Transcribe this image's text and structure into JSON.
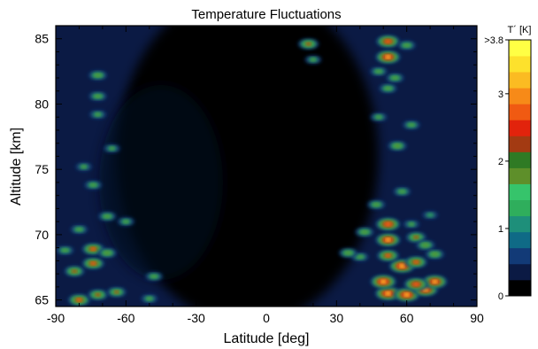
{
  "chart_data": {
    "type": "heatmap",
    "title": "Temperature Fluctuations",
    "xlabel": "Latitude [deg]",
    "ylabel": "Altitude [km]",
    "xlim": [
      -90,
      90
    ],
    "ylim": [
      64.5,
      86
    ],
    "x_ticks": [
      -90,
      -60,
      -30,
      0,
      30,
      60,
      90
    ],
    "y_ticks": [
      65,
      70,
      75,
      80,
      85
    ],
    "x_tick_labels": [
      "-90",
      "-60",
      "-30",
      "0",
      "30",
      "60",
      "90"
    ],
    "y_tick_labels": [
      "65",
      "70",
      "75",
      "80",
      "85"
    ],
    "colorbar": {
      "label": "T´ [K]",
      "range": [
        0,
        3.8
      ],
      "ticks": [
        0,
        1,
        2,
        3,
        3.8
      ],
      "tick_labels": [
        "0",
        "1",
        "2",
        "3",
        ">3.8"
      ],
      "colors": [
        "#000000",
        "#0b1a44",
        "#123a77",
        "#0f6a86",
        "#1e8f7a",
        "#2fae5c",
        "#36c46b",
        "#5e8f2a",
        "#2f7a24",
        "#a33a12",
        "#e2230c",
        "#f05a12",
        "#f78a18",
        "#fbbb22",
        "#fde12c",
        "#ffff44"
      ]
    },
    "features": [
      {
        "lat": 52,
        "alt": 65.5,
        "value": 3.8
      },
      {
        "lat": 60,
        "alt": 65.4,
        "value": 3.8
      },
      {
        "lat": 68,
        "alt": 65.8,
        "value": 3.7
      },
      {
        "lat": 72,
        "alt": 66.4,
        "value": 3.6
      },
      {
        "lat": 64,
        "alt": 66.2,
        "value": 3.4
      },
      {
        "lat": 50,
        "alt": 66.4,
        "value": 3.8
      },
      {
        "lat": 58,
        "alt": 67.6,
        "value": 3.8
      },
      {
        "lat": 64,
        "alt": 67.9,
        "value": 3.0
      },
      {
        "lat": 52,
        "alt": 68.4,
        "value": 3.0
      },
      {
        "lat": 52,
        "alt": 69.6,
        "value": 3.6
      },
      {
        "lat": 52,
        "alt": 70.8,
        "value": 3.5
      },
      {
        "lat": 64,
        "alt": 69.8,
        "value": 2.6
      },
      {
        "lat": 68,
        "alt": 69.2,
        "value": 2.3
      },
      {
        "lat": 72,
        "alt": 68.5,
        "value": 2.3
      },
      {
        "lat": 42,
        "alt": 70.2,
        "value": 2.2
      },
      {
        "lat": 40,
        "alt": 68.3,
        "value": 2.0
      },
      {
        "lat": 35,
        "alt": 68.6,
        "value": 2.2
      },
      {
        "lat": 47,
        "alt": 72.3,
        "value": 2.1
      },
      {
        "lat": 58,
        "alt": 73.3,
        "value": 2.0
      },
      {
        "lat": 56,
        "alt": 76.8,
        "value": 2.3
      },
      {
        "lat": 62,
        "alt": 78.4,
        "value": 2.0
      },
      {
        "lat": 48,
        "alt": 79.0,
        "value": 1.9
      },
      {
        "lat": 52,
        "alt": 81.2,
        "value": 2.1
      },
      {
        "lat": 55,
        "alt": 82.0,
        "value": 2.1
      },
      {
        "lat": 48,
        "alt": 82.5,
        "value": 2.0
      },
      {
        "lat": 52,
        "alt": 83.6,
        "value": 3.6
      },
      {
        "lat": 52,
        "alt": 84.8,
        "value": 3.3
      },
      {
        "lat": 60,
        "alt": 84.5,
        "value": 2.1
      },
      {
        "lat": 18,
        "alt": 84.6,
        "value": 2.6
      },
      {
        "lat": 20,
        "alt": 83.4,
        "value": 1.8
      },
      {
        "lat": 62,
        "alt": 70.8,
        "value": 1.8
      },
      {
        "lat": 70,
        "alt": 71.5,
        "value": 1.7
      },
      {
        "lat": -80,
        "alt": 65.0,
        "value": 3.0
      },
      {
        "lat": -72,
        "alt": 65.4,
        "value": 2.6
      },
      {
        "lat": -64,
        "alt": 65.6,
        "value": 2.4
      },
      {
        "lat": -82,
        "alt": 67.2,
        "value": 2.6
      },
      {
        "lat": -74,
        "alt": 67.8,
        "value": 3.0
      },
      {
        "lat": -74,
        "alt": 68.9,
        "value": 3.0
      },
      {
        "lat": -68,
        "alt": 68.6,
        "value": 2.3
      },
      {
        "lat": -86,
        "alt": 68.8,
        "value": 2.0
      },
      {
        "lat": -80,
        "alt": 70.4,
        "value": 2.0
      },
      {
        "lat": -68,
        "alt": 71.4,
        "value": 2.1
      },
      {
        "lat": -60,
        "alt": 71.0,
        "value": 1.9
      },
      {
        "lat": -74,
        "alt": 73.8,
        "value": 2.0
      },
      {
        "lat": -78,
        "alt": 75.2,
        "value": 1.8
      },
      {
        "lat": -66,
        "alt": 76.6,
        "value": 1.8
      },
      {
        "lat": -72,
        "alt": 79.2,
        "value": 1.9
      },
      {
        "lat": -72,
        "alt": 80.6,
        "value": 2.1
      },
      {
        "lat": -72,
        "alt": 82.2,
        "value": 2.2
      },
      {
        "lat": -48,
        "alt": 66.8,
        "value": 2.0
      },
      {
        "lat": -50,
        "alt": 65.1,
        "value": 1.9
      }
    ]
  }
}
